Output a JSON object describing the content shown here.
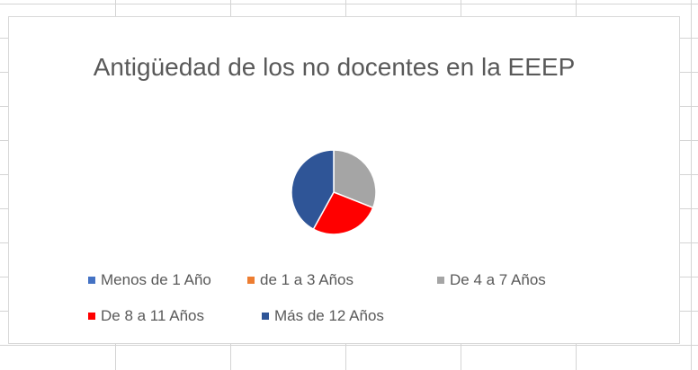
{
  "chart_data": {
    "type": "pie",
    "title": "Antigüedad de los no docentes en la EEEP",
    "categories": [
      "Menos de 1 Año",
      "de 1 a 3 Años",
      "De 4 a 7 Años",
      "De 8 a 11 Años",
      "Más de 12 Años"
    ],
    "values": [
      0,
      0,
      31,
      27,
      42
    ],
    "colors": [
      "#4472c4",
      "#ed7d31",
      "#a5a5a5",
      "#ff0000",
      "#2f5597"
    ],
    "legend": "bottom"
  }
}
